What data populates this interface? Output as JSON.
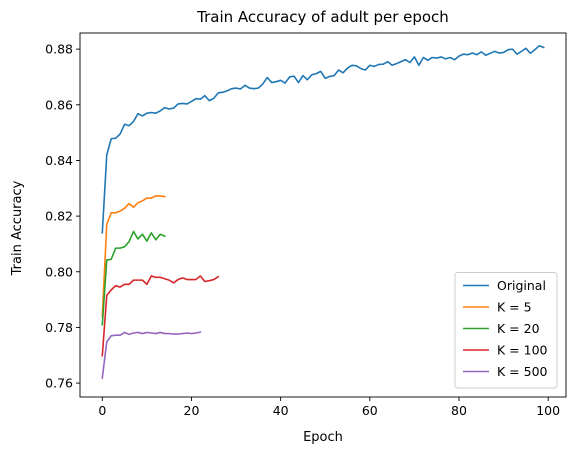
{
  "chart_data": {
    "type": "line",
    "title": "Train Accuracy of adult per epoch",
    "xlabel": "Epoch",
    "ylabel": "Train Accuracy",
    "xlim": [
      -5,
      104
    ],
    "ylim": [
      0.755,
      0.8858
    ],
    "xticks": [
      0,
      20,
      40,
      60,
      80,
      100
    ],
    "yticks": [
      0.76,
      0.78,
      0.8,
      0.82,
      0.84,
      0.86,
      0.88
    ],
    "ytick_labels": [
      "0.76",
      "0.78",
      "0.80",
      "0.82",
      "0.84",
      "0.86",
      "0.88"
    ],
    "grid": false,
    "legend_position": "lower-right",
    "series": [
      {
        "name": "Original",
        "color": "#1f77b4",
        "x": [
          0,
          1,
          2,
          3,
          4,
          5,
          6,
          7,
          8,
          9,
          10,
          11,
          12,
          13,
          14,
          15,
          16,
          17,
          18,
          19,
          20,
          21,
          22,
          23,
          24,
          25,
          26,
          27,
          28,
          29,
          30,
          31,
          32,
          33,
          34,
          35,
          36,
          37,
          38,
          39,
          40,
          41,
          42,
          43,
          44,
          45,
          46,
          47,
          48,
          49,
          50,
          51,
          52,
          53,
          54,
          55,
          56,
          57,
          58,
          59,
          60,
          61,
          62,
          63,
          64,
          65,
          66,
          67,
          68,
          69,
          70,
          71,
          72,
          73,
          74,
          75,
          76,
          77,
          78,
          79,
          80,
          81,
          82,
          83,
          84,
          85,
          86,
          87,
          88,
          89,
          90,
          91,
          92,
          93,
          94,
          95,
          96,
          97,
          98,
          99
        ],
        "values": [
          0.814,
          0.842,
          0.8478,
          0.848,
          0.8495,
          0.853,
          0.8525,
          0.854,
          0.8568,
          0.856,
          0.857,
          0.8572,
          0.857,
          0.8578,
          0.859,
          0.8585,
          0.8588,
          0.8603,
          0.8605,
          0.8603,
          0.8612,
          0.8622,
          0.862,
          0.8633,
          0.8615,
          0.8623,
          0.8643,
          0.8645,
          0.865,
          0.8658,
          0.866,
          0.8657,
          0.867,
          0.866,
          0.8658,
          0.866,
          0.8675,
          0.8698,
          0.868,
          0.8683,
          0.8688,
          0.8678,
          0.87,
          0.8703,
          0.868,
          0.8705,
          0.869,
          0.8708,
          0.8712,
          0.872,
          0.8695,
          0.8702,
          0.8705,
          0.8725,
          0.8715,
          0.8732,
          0.8742,
          0.874,
          0.873,
          0.8725,
          0.8742,
          0.8738,
          0.8745,
          0.8746,
          0.8755,
          0.8742,
          0.8748,
          0.8755,
          0.8762,
          0.8752,
          0.8772,
          0.8742,
          0.877,
          0.876,
          0.877,
          0.8768,
          0.8772,
          0.8765,
          0.877,
          0.8762,
          0.8775,
          0.8782,
          0.878,
          0.8786,
          0.878,
          0.879,
          0.8778,
          0.8785,
          0.8792,
          0.8786,
          0.8788,
          0.8798,
          0.88,
          0.8782,
          0.8792,
          0.8803,
          0.8785,
          0.8798,
          0.8812,
          0.8806
        ]
      },
      {
        "name": "K = 5",
        "color": "#ff7f0e",
        "x": [
          0,
          1,
          2,
          3,
          4,
          5,
          6,
          7,
          8,
          9,
          10,
          11,
          12,
          13,
          14
        ],
        "values": [
          0.784,
          0.817,
          0.8212,
          0.8212,
          0.8218,
          0.8228,
          0.8245,
          0.8232,
          0.8248,
          0.8255,
          0.8265,
          0.8265,
          0.8273,
          0.8272,
          0.827
        ]
      },
      {
        "name": "K = 20",
        "color": "#2ca02c",
        "x": [
          0,
          1,
          2,
          3,
          4,
          5,
          6,
          7,
          8,
          9,
          10,
          11,
          12,
          13,
          14
        ],
        "values": [
          0.781,
          0.8042,
          0.8045,
          0.8085,
          0.8085,
          0.809,
          0.8108,
          0.8145,
          0.8118,
          0.8135,
          0.811,
          0.814,
          0.8115,
          0.8135,
          0.8128
        ]
      },
      {
        "name": "K = 100",
        "color": "#d62728",
        "x": [
          0,
          1,
          2,
          3,
          4,
          5,
          6,
          7,
          8,
          9,
          10,
          11,
          12,
          13,
          14,
          15,
          16,
          17,
          18,
          19,
          20,
          21,
          22,
          23,
          24,
          25,
          26
        ],
        "values": [
          0.7698,
          0.7915,
          0.7935,
          0.795,
          0.7945,
          0.7955,
          0.7955,
          0.797,
          0.797,
          0.797,
          0.7955,
          0.7985,
          0.798,
          0.798,
          0.7975,
          0.797,
          0.796,
          0.7972,
          0.7978,
          0.7972,
          0.7972,
          0.7972,
          0.7985,
          0.7965,
          0.7968,
          0.7972,
          0.7982
        ]
      },
      {
        "name": "K = 500",
        "color": "#9467bd",
        "x": [
          0,
          1,
          2,
          3,
          4,
          5,
          6,
          7,
          8,
          9,
          10,
          11,
          12,
          13,
          14,
          15,
          16,
          17,
          18,
          19,
          20,
          21,
          22
        ],
        "values": [
          0.7618,
          0.7748,
          0.777,
          0.7772,
          0.7772,
          0.7782,
          0.7775,
          0.778,
          0.7782,
          0.7778,
          0.7782,
          0.778,
          0.7778,
          0.7782,
          0.7778,
          0.7778,
          0.7776,
          0.7776,
          0.7778,
          0.778,
          0.7778,
          0.778,
          0.7783
        ]
      }
    ]
  }
}
